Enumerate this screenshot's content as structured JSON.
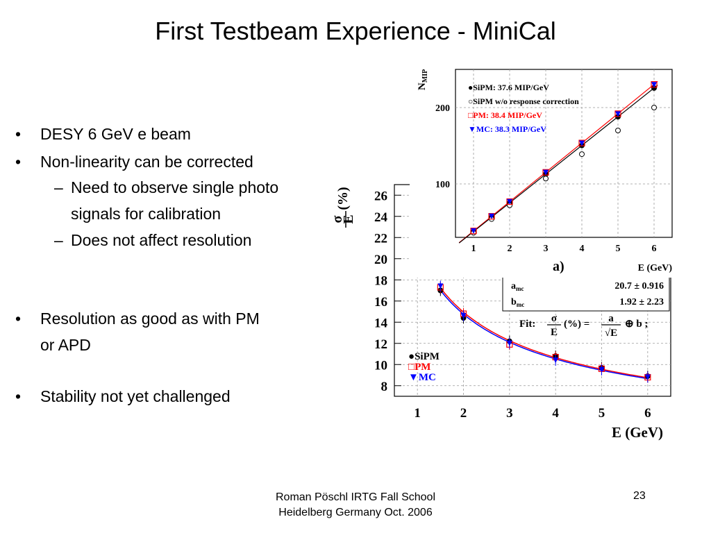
{
  "slide": {
    "title": "First Testbeam Experience - MiniCal",
    "bullets": [
      {
        "level": 1,
        "marker": "•",
        "text": "DESY 6 GeV e beam"
      },
      {
        "level": 1,
        "marker": "•",
        "text": "Non-linearity can be corrected"
      },
      {
        "level": 2,
        "marker": "–",
        "text": "Need to observe single photo"
      },
      {
        "level": 2,
        "marker": "",
        "text": "signals for calibration"
      },
      {
        "level": 2,
        "marker": "–",
        "text": "Does not affect resolution"
      },
      {
        "level": 1,
        "marker": "•",
        "text": "Resolution as good as with PM"
      },
      {
        "level": 1,
        "marker": "",
        "text": "or APD"
      },
      {
        "level": 1,
        "marker": "•",
        "text": "Stability not yet challenged"
      }
    ],
    "footer_line1": "Roman Pöschl IRTG Fall School",
    "footer_line2": "Heidelberg Germany Oct. 2006",
    "page_number": "23"
  },
  "chart_data": [
    {
      "type": "scatter",
      "ylabel_sigma": "σ",
      "ylabel_E": "E",
      "ylabel_unit": "(%)",
      "xlabel": "E (GeV)",
      "xlim": [
        0.5,
        6.5
      ],
      "ylim": [
        7,
        27
      ],
      "x_ticks": [
        "1",
        "2",
        "3",
        "4",
        "5",
        "6"
      ],
      "y_ticks": [
        "8",
        "10",
        "12",
        "14",
        "16",
        "18",
        "20",
        "22",
        "24",
        "26"
      ],
      "x": [
        1.5,
        2,
        3,
        4,
        5,
        6
      ],
      "series": [
        {
          "name": "SiPM",
          "marker": "●",
          "color": "#000000",
          "values": [
            17.0,
            14.4,
            12.2,
            10.8,
            9.7,
            8.9
          ]
        },
        {
          "name": "PM",
          "marker": "□",
          "color": "#ff0000",
          "values": [
            17.3,
            14.8,
            11.9,
            10.7,
            9.6,
            8.8
          ]
        },
        {
          "name": "MC",
          "marker": "▼",
          "color": "#0000ff",
          "values": [
            17.4,
            14.6,
            12.0,
            10.4,
            9.5,
            8.8
          ]
        }
      ],
      "fit_table": [
        {
          "param": "a",
          "sub": "mc",
          "value": "20.7 ± 0.916"
        },
        {
          "param": "b",
          "sub": "mc",
          "value": "1.92 ±  2.23"
        }
      ],
      "fit_label": "Fit:",
      "fit_formula_rhs": "(%) =",
      "fit_a": "a",
      "fit_sqrtE": "√E",
      "fit_tail": "⊕ b ;"
    },
    {
      "type": "scatter",
      "ylabel": "N",
      "ylabel_sub": "MIP",
      "xlabel": "E (GeV)",
      "panel_label": "a)",
      "xlim": [
        0.5,
        6.5
      ],
      "ylim": [
        30,
        250
      ],
      "x_ticks": [
        "1",
        "2",
        "3",
        "4",
        "5",
        "6"
      ],
      "y_ticks": [
        "100",
        "200"
      ],
      "x": [
        1,
        1.5,
        2,
        3,
        4,
        5,
        6
      ],
      "series": [
        {
          "name": "SiPM: 37.6 MIP/GeV",
          "marker": "●",
          "color": "#000000",
          "values": [
            37.6,
            56.4,
            75.2,
            112.8,
            150.4,
            188.0,
            225.6
          ]
        },
        {
          "name": "SiPM w/o response correction",
          "marker": "○",
          "color": "#000000",
          "values": [
            36,
            54,
            72,
            107,
            139,
            170,
            200
          ]
        },
        {
          "name": "PM:   38.4 MIP/GeV",
          "marker": "□",
          "color": "#ff0000",
          "values": [
            38.4,
            57.6,
            76.8,
            115.2,
            153.6,
            192.0,
            230.4
          ]
        },
        {
          "name": "MC: 38.3 MIP/GeV",
          "marker": "▼",
          "color": "#0000ff",
          "values": [
            38.3,
            57.5,
            76.6,
            114.9,
            153.2,
            191.5,
            229.8
          ]
        }
      ]
    }
  ]
}
